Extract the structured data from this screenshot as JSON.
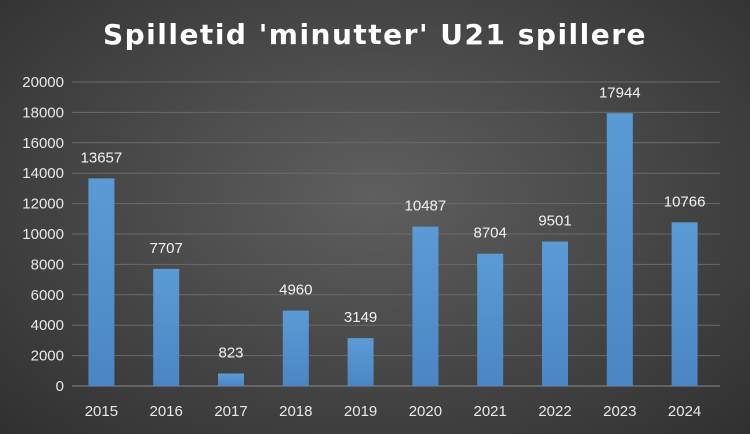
{
  "chart_data": {
    "type": "bar",
    "title": "Spilletid 'minutter' U21 spillere",
    "categories": [
      "2015",
      "2016",
      "2017",
      "2018",
      "2019",
      "2020",
      "2021",
      "2022",
      "2023",
      "2024"
    ],
    "values": [
      13657,
      7707,
      823,
      4960,
      3149,
      10487,
      8704,
      9501,
      17944,
      10766
    ],
    "data_labels": [
      "13657",
      "7707",
      "823",
      "4960",
      "3149",
      "10487",
      "8704",
      "9501",
      "17944",
      "10766"
    ],
    "ylim": [
      0,
      20000
    ],
    "yticks": [
      "0",
      "2000",
      "4000",
      "6000",
      "8000",
      "10000",
      "12000",
      "14000",
      "16000",
      "18000",
      "20000"
    ],
    "grid": true,
    "legend": "none",
    "bar_color": "#5b9bd5",
    "bar_color_dark": "#4a86c4"
  }
}
